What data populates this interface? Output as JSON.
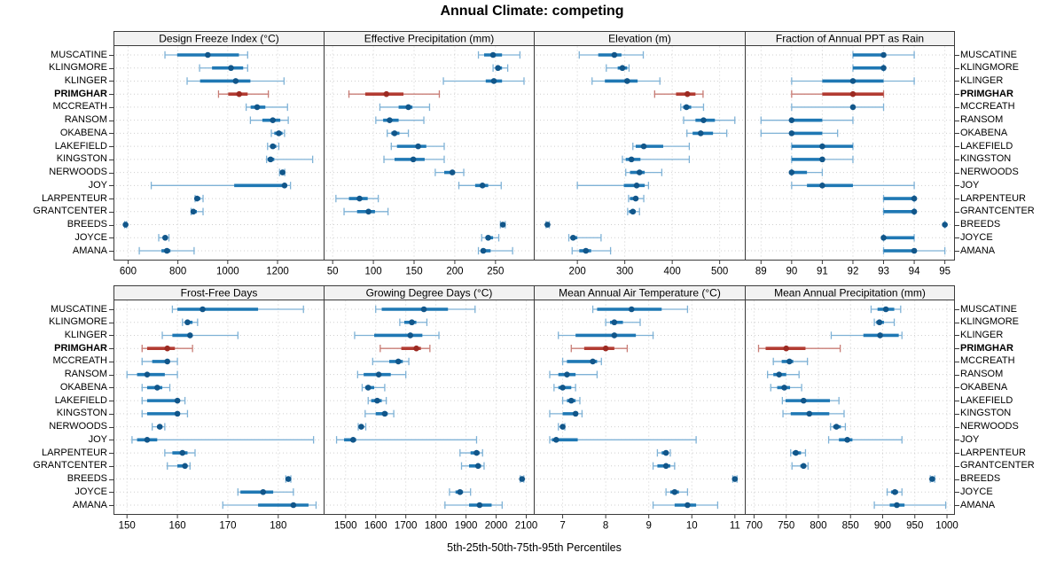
{
  "title": "Annual Climate: competing",
  "caption": "5th-25th-50th-75th-95th Percentiles",
  "chart_data": {
    "type": "dotplot",
    "note": "trellis percentile dotplot, whisker=5th-95th, thick bar=25th-75th, dot=median",
    "percentiles": [
      5,
      25,
      50,
      75,
      95
    ],
    "legend_position": "none",
    "grid": "dotted",
    "categories": [
      "MUSCATINE",
      "KLINGMORE",
      "KLINGER",
      "PRIMGHAR",
      "MCCREATH",
      "RANSOM",
      "OKABENA",
      "LAKEFIELD",
      "KINGSTON",
      "NERWOODS",
      "JOY",
      "LARPENTEUR",
      "GRANTCENTER",
      "BREEDS",
      "JOYCE",
      "AMANA"
    ],
    "highlight_category": "PRIMGHAR",
    "colors": {
      "normal_whisker": "#7fb2d6",
      "normal_box": "#1f78b4",
      "normal_dot": "#11568a",
      "highlight_whisker": "#c87d76",
      "highlight_box": "#b23b32",
      "highlight_dot": "#9c2a22",
      "grid": "#cfcfcf",
      "strip_bg": "#f2f2f2",
      "frame": "#3a3a3a"
    },
    "panels": [
      {
        "title": "Design Freeze Index (°C)",
        "ticks": [
          600,
          800,
          1000,
          1200
        ],
        "xlim": [
          545,
          1385
        ],
        "series": [
          [
            748,
            797,
            920,
            1045,
            1080
          ],
          [
            887,
            937,
            1013,
            1062,
            1080
          ],
          [
            837,
            889,
            1032,
            1091,
            1226
          ],
          [
            963,
            1002,
            1046,
            1080,
            1163
          ],
          [
            1074,
            1092,
            1118,
            1151,
            1240
          ],
          [
            1091,
            1139,
            1181,
            1211,
            1243
          ],
          [
            1175,
            1187,
            1205,
            1220,
            1228
          ],
          [
            1160,
            1170,
            1181,
            1195,
            1205
          ],
          [
            1156,
            1160,
            1172,
            1187,
            1341
          ],
          [
            1208,
            1215,
            1220,
            1225,
            1229
          ],
          [
            693,
            1026,
            1228,
            1236,
            1252
          ],
          [
            869,
            874,
            877,
            890,
            901
          ],
          [
            853,
            858,
            862,
            876,
            901
          ],
          [
            586,
            588,
            590,
            592,
            594
          ],
          [
            723,
            740,
            749,
            756,
            764
          ],
          [
            645,
            734,
            756,
            770,
            865
          ]
        ]
      },
      {
        "title": "Effective Precipitation (mm)",
        "ticks": [
          50,
          100,
          150,
          200,
          250
        ],
        "xlim": [
          40,
          297
        ],
        "series": [
          [
            229,
            236,
            247,
            258,
            280
          ],
          [
            247,
            250,
            253,
            258,
            265
          ],
          [
            186,
            238,
            248,
            258,
            285
          ],
          [
            70,
            90,
            116,
            137,
            181
          ],
          [
            108,
            131,
            143,
            148,
            169
          ],
          [
            103,
            112,
            120,
            131,
            162
          ],
          [
            117,
            122,
            126,
            132,
            143
          ],
          [
            122,
            129,
            155,
            165,
            187
          ],
          [
            113,
            126,
            149,
            163,
            187
          ],
          [
            176,
            187,
            197,
            200,
            211
          ],
          [
            205,
            225,
            234,
            241,
            257
          ],
          [
            54,
            70,
            83,
            93,
            106
          ],
          [
            64,
            80,
            94,
            102,
            118
          ],
          [
            256,
            258,
            259,
            260,
            262
          ],
          [
            233,
            238,
            241,
            247,
            254
          ],
          [
            229,
            232,
            235,
            244,
            271
          ]
        ]
      },
      {
        "title": "Elevation (m)",
        "ticks": [
          200,
          300,
          400,
          500
        ],
        "xlim": [
          110,
          553
        ],
        "series": [
          [
            204,
            244,
            278,
            293,
            339
          ],
          [
            261,
            285,
            295,
            305,
            309
          ],
          [
            231,
            258,
            305,
            327,
            374
          ],
          [
            363,
            408,
            432,
            449,
            465
          ],
          [
            418,
            423,
            430,
            440,
            466
          ],
          [
            424,
            449,
            466,
            490,
            532
          ],
          [
            431,
            443,
            460,
            486,
            515
          ],
          [
            317,
            323,
            340,
            381,
            436
          ],
          [
            295,
            302,
            314,
            333,
            436
          ],
          [
            302,
            311,
            331,
            342,
            378
          ],
          [
            200,
            298,
            325,
            342,
            350
          ],
          [
            308,
            311,
            323,
            328,
            340
          ],
          [
            306,
            309,
            317,
            323,
            331
          ],
          [
            134,
            136,
            137,
            139,
            141
          ],
          [
            182,
            186,
            191,
            200,
            250
          ],
          [
            189,
            204,
            218,
            229,
            270
          ]
        ]
      },
      {
        "title": "Fraction of Annual PPT as Rain",
        "ticks": [
          89,
          90,
          91,
          92,
          93,
          94,
          95
        ],
        "xlim": [
          88.5,
          95.3
        ],
        "series": [
          [
            92,
            92,
            93,
            93,
            94
          ],
          [
            92,
            92,
            93,
            93,
            93
          ],
          [
            90,
            91,
            92,
            93,
            94
          ],
          [
            90,
            91,
            92,
            93,
            93
          ],
          [
            90,
            92,
            92,
            92,
            93
          ],
          [
            89,
            90,
            90,
            91,
            92
          ],
          [
            89,
            90,
            90,
            91,
            91.5
          ],
          [
            90,
            90,
            91,
            92,
            92
          ],
          [
            90,
            90,
            91,
            91,
            92
          ],
          [
            90,
            90,
            90,
            90.5,
            91
          ],
          [
            90,
            90.5,
            91,
            92,
            94
          ],
          [
            93,
            93,
            94,
            94,
            94
          ],
          [
            93,
            93,
            94,
            94,
            94
          ],
          [
            95,
            95,
            95,
            95,
            95
          ],
          [
            93,
            93,
            93,
            94,
            94
          ],
          [
            93,
            93,
            94,
            94,
            95
          ]
        ]
      },
      {
        "title": "Frost-Free Days",
        "ticks": [
          150,
          160,
          170,
          180
        ],
        "xlim": [
          147.5,
          189
        ],
        "series": [
          [
            159,
            160,
            165,
            176,
            185
          ],
          [
            161,
            161.5,
            162,
            163,
            164
          ],
          [
            157,
            159,
            162.5,
            163,
            172
          ],
          [
            153,
            154,
            158,
            159.5,
            163
          ],
          [
            153,
            155,
            158,
            158.5,
            160
          ],
          [
            150,
            152,
            154,
            157.5,
            160
          ],
          [
            153,
            154,
            156,
            157,
            158.5
          ],
          [
            153,
            154,
            160,
            160.5,
            161.5
          ],
          [
            153,
            154,
            160,
            160.5,
            162
          ],
          [
            155,
            156,
            156.5,
            157,
            157.5
          ],
          [
            151,
            152,
            154,
            156,
            187
          ],
          [
            157.5,
            159,
            161,
            162,
            163.5
          ],
          [
            158,
            160,
            161.5,
            162,
            162.5
          ],
          [
            181.5,
            181.8,
            182,
            182.2,
            182.5
          ],
          [
            172,
            172.5,
            177,
            179,
            183
          ],
          [
            169,
            176,
            183,
            186,
            187.5
          ]
        ]
      },
      {
        "title": "Growing Degree Days (°C)",
        "ticks": [
          1500,
          1600,
          1700,
          1800,
          1900,
          2000,
          2100
        ],
        "xlim": [
          1430,
          2125
        ],
        "series": [
          [
            1600,
            1620,
            1760,
            1840,
            1930
          ],
          [
            1680,
            1695,
            1720,
            1735,
            1770
          ],
          [
            1530,
            1595,
            1715,
            1755,
            1810
          ],
          [
            1615,
            1685,
            1735,
            1750,
            1780
          ],
          [
            1590,
            1645,
            1675,
            1690,
            1710
          ],
          [
            1540,
            1560,
            1610,
            1650,
            1700
          ],
          [
            1555,
            1565,
            1575,
            1595,
            1630
          ],
          [
            1575,
            1585,
            1605,
            1620,
            1635
          ],
          [
            1565,
            1600,
            1630,
            1640,
            1660
          ],
          [
            1542,
            1547,
            1552,
            1558,
            1567
          ],
          [
            1470,
            1495,
            1525,
            1535,
            1935
          ],
          [
            1880,
            1915,
            1935,
            1945,
            1955
          ],
          [
            1885,
            1910,
            1940,
            1950,
            1960
          ],
          [
            2080,
            2083,
            2086,
            2089,
            2092
          ],
          [
            1845,
            1865,
            1880,
            1890,
            1915
          ],
          [
            1830,
            1910,
            1945,
            1985,
            2020
          ]
        ]
      },
      {
        "title": "Mean Annual Air Temperature (°C)",
        "ticks": [
          7,
          8,
          9,
          10,
          11
        ],
        "xlim": [
          6.35,
          11.23
        ],
        "series": [
          [
            7.7,
            7.8,
            8.6,
            9.3,
            9.9
          ],
          [
            8.0,
            8.1,
            8.2,
            8.4,
            8.8
          ],
          [
            6.9,
            7.3,
            8.2,
            8.7,
            9.1
          ],
          [
            7.2,
            7.5,
            8.0,
            8.2,
            8.5
          ],
          [
            7.0,
            7.1,
            7.7,
            7.8,
            7.9
          ],
          [
            6.7,
            6.9,
            7.1,
            7.3,
            7.8
          ],
          [
            6.8,
            6.9,
            7.0,
            7.2,
            7.3
          ],
          [
            7.0,
            7.1,
            7.2,
            7.3,
            7.4
          ],
          [
            6.7,
            7.0,
            7.3,
            7.35,
            7.45
          ],
          [
            6.9,
            6.95,
            7.0,
            7.0,
            7.05
          ],
          [
            6.7,
            6.75,
            6.85,
            7.35,
            10.1
          ],
          [
            9.2,
            9.3,
            9.4,
            9.45,
            9.5
          ],
          [
            9.1,
            9.2,
            9.4,
            9.5,
            9.6
          ],
          [
            10.95,
            11.0,
            11.0,
            11.0,
            11.05
          ],
          [
            9.4,
            9.5,
            9.6,
            9.7,
            9.9
          ],
          [
            9.1,
            9.6,
            9.9,
            10.1,
            10.6
          ]
        ]
      },
      {
        "title": "Mean Annual Precipitation (mm)",
        "ticks": [
          700,
          750,
          800,
          850,
          900,
          950,
          1000
        ],
        "xlim": [
          687,
          1011
        ],
        "series": [
          [
            882,
            892,
            905,
            918,
            928
          ],
          [
            887,
            890,
            895,
            902,
            918
          ],
          [
            820,
            870,
            896,
            925,
            930
          ],
          [
            707,
            718,
            750,
            780,
            834
          ],
          [
            730,
            743,
            755,
            761,
            783
          ],
          [
            721,
            730,
            739,
            750,
            770
          ],
          [
            726,
            736,
            747,
            756,
            774
          ],
          [
            744,
            749,
            777,
            818,
            832
          ],
          [
            745,
            757,
            786,
            817,
            840
          ],
          [
            819,
            823,
            828,
            835,
            842
          ],
          [
            816,
            832,
            845,
            853,
            930
          ],
          [
            757,
            760,
            765,
            773,
            780
          ],
          [
            759,
            772,
            777,
            781,
            784
          ],
          [
            974,
            976,
            977,
            979,
            981
          ],
          [
            907,
            913,
            919,
            924,
            930
          ],
          [
            887,
            911,
            922,
            934,
            998
          ]
        ]
      }
    ]
  }
}
